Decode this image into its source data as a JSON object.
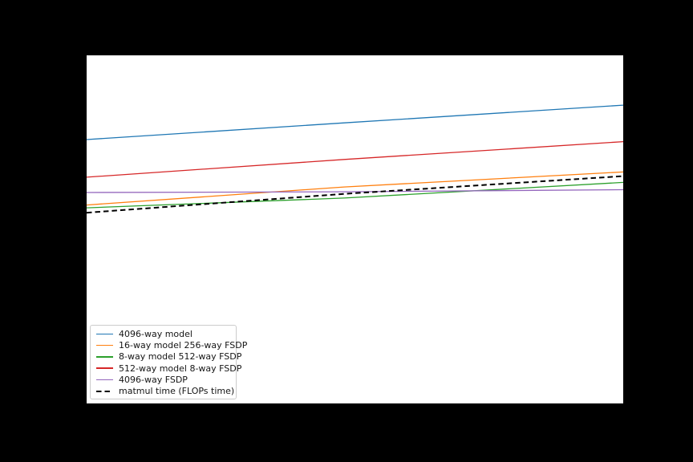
{
  "figure": {
    "background_color": "#000000",
    "axes_background_color": "#ffffff"
  },
  "legend": {
    "position": "lower left",
    "border_color": "#cccccc",
    "background_color": "#ffffff"
  },
  "chart_data": {
    "type": "line",
    "title": "",
    "xlabel": "",
    "ylabel": "",
    "grid": false,
    "tick_labels_visible": false,
    "legend_position": "lower left",
    "series": [
      {
        "name": "4096-way model",
        "color": "#1f77b4",
        "dashed": false,
        "x_frac": [
          0,
          0.48,
          1
        ],
        "y_frac": [
          0.758,
          0.806,
          0.857
        ]
      },
      {
        "name": "16-way model 256-way FSDP",
        "color": "#ff7f0e",
        "dashed": false,
        "x_frac": [
          0,
          0.48,
          1
        ],
        "y_frac": [
          0.57,
          0.622,
          0.665
        ]
      },
      {
        "name": "8-way model 512-way FSDP",
        "color": "#2ca02c",
        "dashed": false,
        "x_frac": [
          0,
          0.48,
          1
        ],
        "y_frac": [
          0.562,
          0.59,
          0.635
        ]
      },
      {
        "name": "512-way model 8-way FSDP",
        "color": "#d62728",
        "dashed": false,
        "x_frac": [
          0,
          0.48,
          1
        ],
        "y_frac": [
          0.65,
          0.701,
          0.752
        ]
      },
      {
        "name": "4096-way FSDP",
        "color": "#9467bd",
        "dashed": false,
        "x_frac": [
          0,
          0.48,
          1
        ],
        "y_frac": [
          0.606,
          0.608,
          0.614
        ]
      },
      {
        "name": "matmul time (FLOPs time)",
        "color": "#000000",
        "dashed": true,
        "x_frac": [
          0,
          0.48,
          1
        ],
        "y_frac": [
          0.548,
          0.602,
          0.653
        ]
      }
    ]
  }
}
